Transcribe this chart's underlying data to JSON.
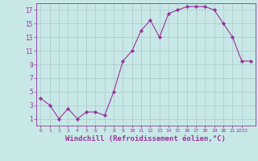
{
  "x": [
    0,
    1,
    2,
    3,
    4,
    5,
    6,
    7,
    8,
    9,
    10,
    11,
    12,
    13,
    14,
    15,
    16,
    17,
    18,
    19,
    20,
    21,
    22,
    23
  ],
  "y": [
    4,
    3,
    1,
    2.5,
    1,
    2,
    2,
    1.5,
    5,
    9.5,
    11,
    14,
    15.5,
    13,
    16.5,
    17,
    17.5,
    17.5,
    17.5,
    17,
    15,
    13,
    9.5,
    9.5
  ],
  "line_color": "#993399",
  "marker": "D",
  "marker_size": 2.2,
  "marker_color": "#993399",
  "bg_color": "#c8e8e8",
  "grid_color": "#b0cccc",
  "xlabel": "Windchill (Refroidissement éolien,°C)",
  "xlabel_fontsize": 6.5,
  "ytick_labels": [
    "1",
    "3",
    "5",
    "7",
    "9",
    "11",
    "13",
    "15",
    "17"
  ],
  "ytick_values": [
    1,
    3,
    5,
    7,
    9,
    11,
    13,
    15,
    17
  ],
  "xlim": [
    -0.5,
    23.5
  ],
  "ylim": [
    0,
    18
  ]
}
